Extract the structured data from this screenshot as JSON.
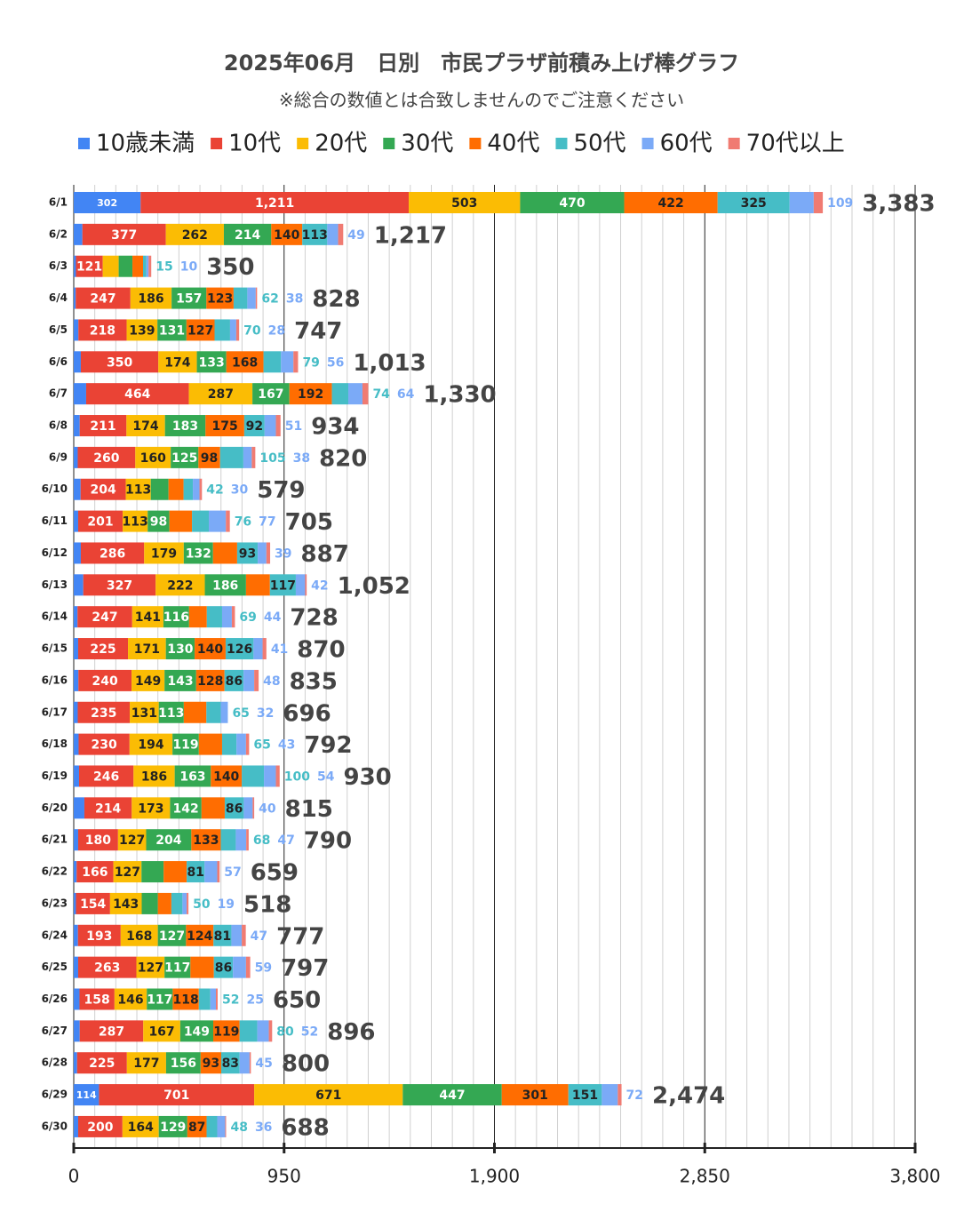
{
  "chart_data": {
    "type": "bar",
    "orientation": "horizontal",
    "stacked": true,
    "title": "2025年06月　日別　市民プラザ前積み上げ棒グラフ",
    "subtitle": "※総合の数値とは合致しませんのでご注意ください",
    "categories": [
      "6/1",
      "6/2",
      "6/3",
      "6/4",
      "6/5",
      "6/6",
      "6/7",
      "6/8",
      "6/9",
      "6/10",
      "6/11",
      "6/12",
      "6/13",
      "6/14",
      "6/15",
      "6/16",
      "6/17",
      "6/18",
      "6/19",
      "6/20",
      "6/21",
      "6/22",
      "6/23",
      "6/24",
      "6/25",
      "6/26",
      "6/27",
      "6/28",
      "6/29",
      "6/30"
    ],
    "series": [
      {
        "name": "10歳未満",
        "color": "#4285f4",
        "values": [
          302,
          39,
          10,
          9,
          21,
          32,
          56,
          27,
          18,
          31,
          20,
          32,
          43,
          17,
          20,
          21,
          18,
          22,
          24,
          48,
          20,
          13,
          10,
          19,
          20,
          26,
          27,
          15,
          114,
          20
        ]
      },
      {
        "name": "10代",
        "color": "#ea4335",
        "values": [
          1211,
          377,
          121,
          247,
          218,
          350,
          464,
          211,
          260,
          204,
          201,
          286,
          327,
          247,
          225,
          240,
          235,
          230,
          246,
          214,
          180,
          166,
          154,
          193,
          263,
          158,
          287,
          225,
          701,
          200
        ],
        "value_labels": [
          "1,211",
          "377",
          "121",
          "247",
          "218",
          "350",
          "464",
          "211",
          "260",
          "204",
          "201",
          "286",
          "327",
          "247",
          "225",
          "240",
          "235",
          "230",
          "246",
          "214",
          "180",
          "166",
          "154",
          "193",
          "263",
          "158",
          "287",
          "225",
          "701",
          "200"
        ]
      },
      {
        "name": "20代",
        "color": "#fbbc04",
        "values": [
          503,
          262,
          72,
          186,
          139,
          174,
          287,
          174,
          160,
          113,
          113,
          179,
          222,
          141,
          171,
          149,
          131,
          194,
          186,
          173,
          127,
          127,
          143,
          168,
          127,
          146,
          167,
          177,
          671,
          164
        ]
      },
      {
        "name": "30代",
        "color": "#34a853",
        "values": [
          470,
          214,
          62,
          157,
          131,
          133,
          167,
          183,
          125,
          80,
          98,
          132,
          186,
          116,
          130,
          143,
          113,
          119,
          163,
          142,
          204,
          100,
          73,
          127,
          117,
          117,
          149,
          156,
          447,
          129
        ]
      },
      {
        "name": "40代",
        "color": "#ff6d01",
        "values": [
          422,
          140,
          48,
          123,
          127,
          168,
          192,
          175,
          98,
          68,
          102,
          109,
          108,
          80,
          140,
          128,
          102,
          105,
          140,
          105,
          133,
          104,
          61,
          124,
          106,
          118,
          119,
          93,
          301,
          87
        ]
      },
      {
        "name": "50代",
        "color": "#46bdc6",
        "values": [
          325,
          113,
          15,
          62,
          70,
          79,
          74,
          92,
          105,
          42,
          76,
          93,
          117,
          69,
          126,
          86,
          65,
          65,
          100,
          86,
          68,
          81,
          50,
          81,
          86,
          52,
          80,
          83,
          151,
          48
        ]
      },
      {
        "name": "60代",
        "color": "#7baaf7",
        "values": [
          109,
          49,
          10,
          38,
          28,
          56,
          64,
          51,
          38,
          30,
          77,
          39,
          42,
          44,
          41,
          48,
          32,
          43,
          54,
          40,
          47,
          57,
          19,
          47,
          59,
          25,
          52,
          45,
          72,
          36
        ]
      },
      {
        "name": "70代以上",
        "color": "#f07b72",
        "values": [
          41,
          23,
          12,
          6,
          13,
          21,
          26,
          21,
          16,
          11,
          18,
          17,
          7,
          14,
          17,
          20,
          0,
          14,
          17,
          7,
          11,
          11,
          8,
          18,
          19,
          8,
          15,
          6,
          17,
          4
        ]
      }
    ],
    "totals": [
      3383,
      1217,
      350,
      828,
      747,
      1013,
      1330,
      934,
      820,
      579,
      705,
      887,
      1052,
      728,
      870,
      835,
      696,
      792,
      930,
      815,
      790,
      659,
      518,
      777,
      797,
      650,
      896,
      800,
      2474,
      688
    ],
    "total_labels": [
      "3,383",
      "1,217",
      "350",
      "828",
      "747",
      "1,013",
      "1,330",
      "934",
      "820",
      "579",
      "705",
      "887",
      "1,052",
      "728",
      "870",
      "835",
      "696",
      "792",
      "930",
      "815",
      "790",
      "659",
      "518",
      "777",
      "797",
      "650",
      "896",
      "800",
      "2,474",
      "688"
    ],
    "xlim": [
      0,
      3800
    ],
    "xticks": [
      0,
      950,
      {
        "value": 1900,
        "label": "1,900"
      },
      {
        "value": 2850,
        "label": "2,850"
      },
      {
        "value": 3800,
        "label": "3,800"
      }
    ],
    "grid": true,
    "legend": "top"
  }
}
